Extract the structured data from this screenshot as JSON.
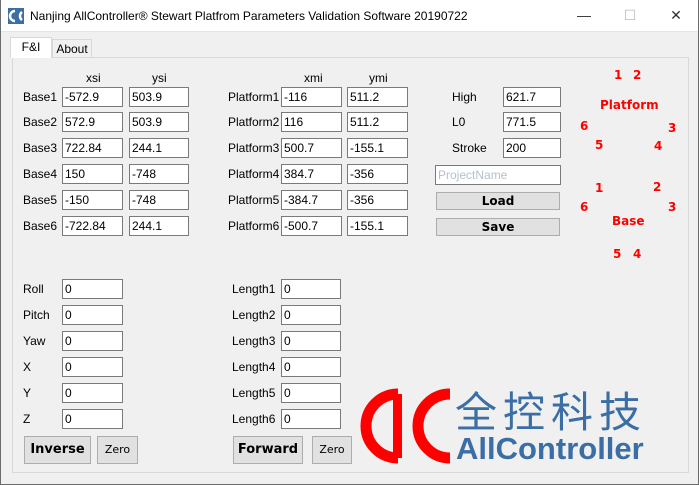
{
  "window": {
    "title": "Nanjing AllController® Stewart Platfrom Parameters Validation Software 20190722",
    "min": "—",
    "max": "☐",
    "close": "✕"
  },
  "tabs": [
    {
      "label": "F&I",
      "active": true
    },
    {
      "label": "About",
      "active": false
    }
  ],
  "base": {
    "col_x": "xsi",
    "col_y": "ysi",
    "rows": [
      {
        "label": "Base1",
        "x": "-572.9",
        "y": "503.9"
      },
      {
        "label": "Base2",
        "x": "572.9",
        "y": "503.9"
      },
      {
        "label": "Base3",
        "x": "722.84",
        "y": "244.1"
      },
      {
        "label": "Base4",
        "x": "150",
        "y": "-748"
      },
      {
        "label": "Base5",
        "x": "-150",
        "y": "-748"
      },
      {
        "label": "Base6",
        "x": "-722.84",
        "y": "244.1"
      }
    ]
  },
  "platform": {
    "col_x": "xmi",
    "col_y": "ymi",
    "rows": [
      {
        "label": "Platform1",
        "x": "-116",
        "y": "511.2"
      },
      {
        "label": "Platform2",
        "x": "116",
        "y": "511.2"
      },
      {
        "label": "Platform3",
        "x": "500.7",
        "y": "-155.1"
      },
      {
        "label": "Platform4",
        "x": "384.7",
        "y": "-356"
      },
      {
        "label": "Platform5",
        "x": "-384.7",
        "y": "-356"
      },
      {
        "label": "Platform6",
        "x": "-500.7",
        "y": "-155.1"
      }
    ]
  },
  "params": [
    {
      "label": "High",
      "value": "621.7"
    },
    {
      "label": "L0",
      "value": "771.5"
    },
    {
      "label": "Stroke",
      "value": "200"
    }
  ],
  "project": {
    "placeholder": "ProjectName",
    "value": ""
  },
  "load_label": "Load",
  "save_label": "Save",
  "diagram": {
    "platform_label": "Platform",
    "base_label": "Base",
    "color": "#ff0000",
    "platform_nums": [
      "1",
      "2",
      "3",
      "4",
      "5",
      "6"
    ],
    "base_nums": [
      "1",
      "2",
      "3",
      "4",
      "5",
      "6"
    ]
  },
  "pose": [
    {
      "label": "Roll",
      "value": "0"
    },
    {
      "label": "Pitch",
      "value": "0"
    },
    {
      "label": "Yaw",
      "value": "0"
    },
    {
      "label": "X",
      "value": "0"
    },
    {
      "label": "Y",
      "value": "0"
    },
    {
      "label": "Z",
      "value": "0"
    }
  ],
  "lengths": [
    {
      "label": "Length1",
      "value": "0"
    },
    {
      "label": "Length2",
      "value": "0"
    },
    {
      "label": "Length3",
      "value": "0"
    },
    {
      "label": "Length4",
      "value": "0"
    },
    {
      "label": "Length5",
      "value": "0"
    },
    {
      "label": "Length6",
      "value": "0"
    }
  ],
  "inverse_label": "Inverse",
  "zero_label": "Zero",
  "forward_label": "Forward",
  "logo": {
    "chinese": "全控科技",
    "english": "AllController",
    "red": "#ff0000",
    "blue": "#3a6ea5"
  }
}
